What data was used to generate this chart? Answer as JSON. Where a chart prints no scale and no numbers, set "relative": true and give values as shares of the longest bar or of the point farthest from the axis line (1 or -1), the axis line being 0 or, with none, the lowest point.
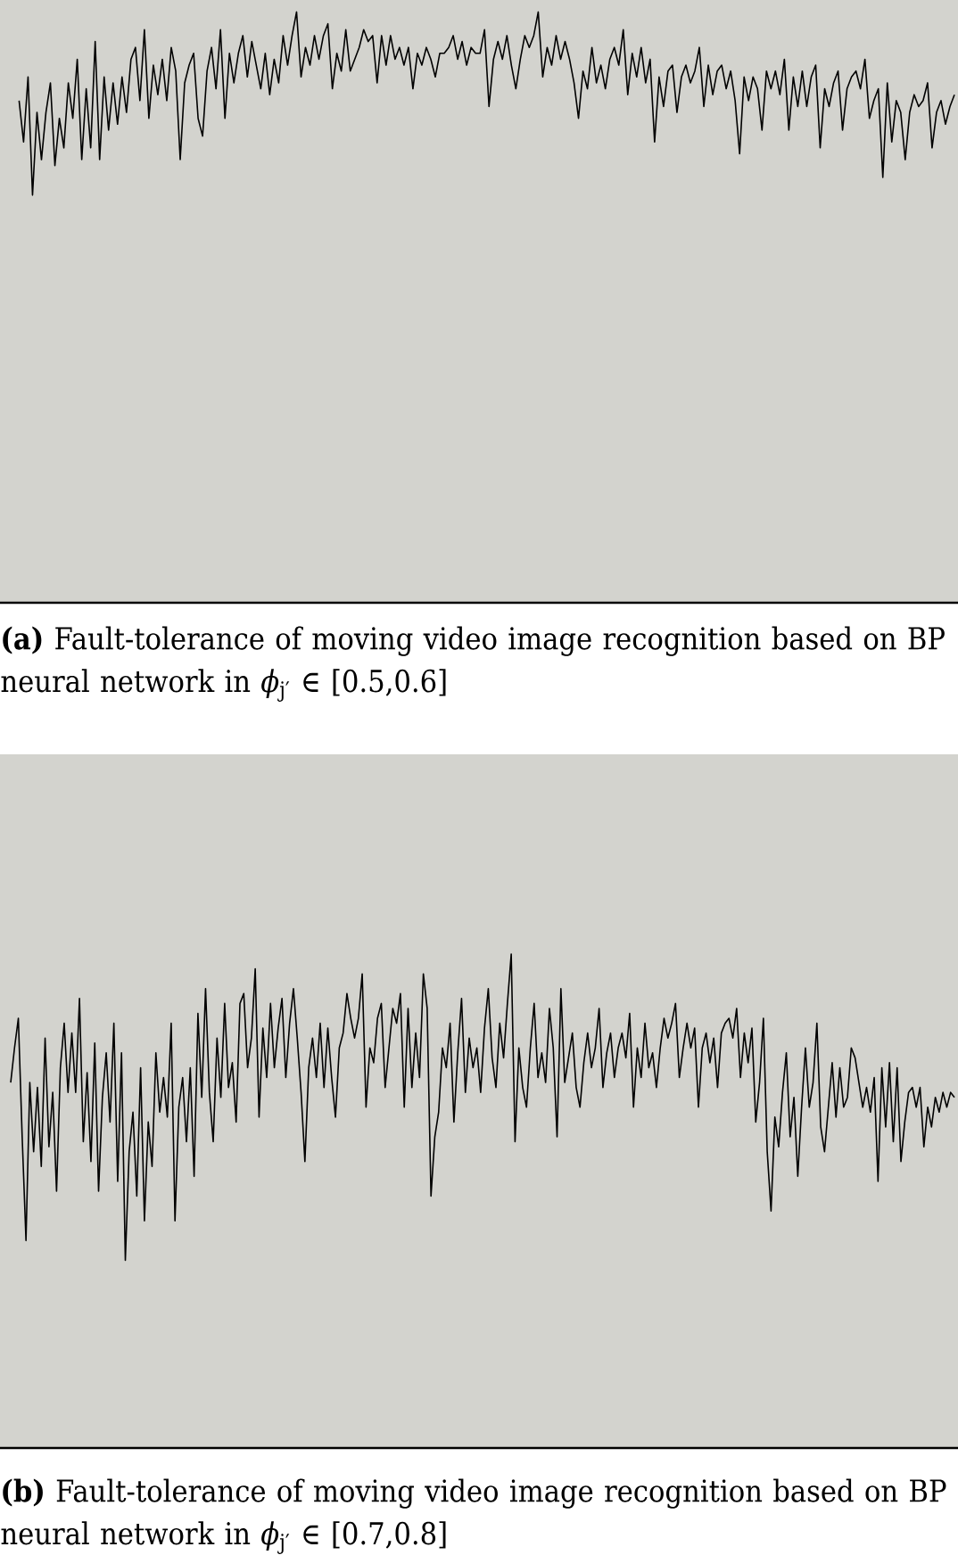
{
  "chart_data": [
    {
      "type": "line",
      "relative": true,
      "color": "#000000",
      "title": "**(a)** Fault-tolerance of moving video image recognition based on BP neural network in *ϕ*$_{j′}$ ∈ [0.5,0.6]",
      "categories": [
        null,
        null,
        null,
        null,
        null,
        null,
        null,
        null,
        null,
        null,
        null,
        null,
        null,
        null,
        null,
        null,
        null,
        null,
        null,
        null,
        null,
        null,
        null,
        null,
        null,
        null,
        null,
        null,
        null,
        null,
        null,
        null,
        null,
        null,
        null,
        null,
        null,
        null,
        null,
        null,
        null,
        null,
        null,
        null,
        null,
        null,
        null,
        null,
        null,
        null,
        null,
        null,
        null,
        null,
        null,
        null,
        null,
        null,
        null,
        null,
        null,
        null,
        null,
        null,
        null,
        null,
        null,
        null,
        null,
        null,
        null,
        null,
        null,
        null,
        null,
        null,
        null,
        null,
        null,
        null,
        null,
        null,
        null,
        null,
        null,
        null,
        null,
        null,
        null,
        null,
        null,
        null,
        null,
        null,
        null,
        null,
        null,
        null,
        null,
        null,
        null,
        null,
        null,
        null,
        null,
        null,
        null,
        null,
        null,
        null,
        null,
        null,
        null,
        null,
        null,
        null,
        null,
        null,
        null,
        null,
        null,
        null,
        null,
        null,
        null,
        null,
        null,
        null,
        null,
        null,
        null,
        null,
        null,
        null,
        null,
        null,
        null,
        null,
        null,
        null,
        null,
        null,
        null,
        null,
        null,
        null,
        null,
        null,
        null,
        null,
        null,
        null,
        null,
        null,
        null,
        null,
        null,
        null,
        null,
        null,
        null,
        null,
        null,
        null,
        null,
        null,
        null,
        null,
        null,
        null,
        null,
        null,
        null,
        null,
        null,
        null,
        null,
        null,
        null,
        null,
        null,
        null,
        null,
        null,
        null,
        null,
        null,
        null,
        null,
        null,
        null,
        null,
        null,
        null,
        null,
        null,
        null,
        null,
        null,
        null,
        null,
        null,
        null,
        null,
        null,
        null,
        null,
        null,
        null,
        null
      ],
      "values": [
        0.85,
        0.78,
        0.89,
        0.69,
        0.83,
        0.75,
        0.83,
        0.88,
        0.74,
        0.82,
        0.77,
        0.88,
        0.82,
        0.92,
        0.75,
        0.87,
        0.77,
        0.95,
        0.75,
        0.89,
        0.8,
        0.88,
        0.81,
        0.89,
        0.83,
        0.92,
        0.94,
        0.85,
        0.97,
        0.82,
        0.91,
        0.86,
        0.92,
        0.85,
        0.94,
        0.9,
        0.75,
        0.88,
        0.91,
        0.93,
        0.82,
        0.79,
        0.9,
        0.94,
        0.87,
        0.97,
        0.82,
        0.93,
        0.88,
        0.93,
        0.96,
        0.89,
        0.95,
        0.91,
        0.87,
        0.93,
        0.86,
        0.92,
        0.88,
        0.96,
        0.91,
        0.96,
        1.0,
        0.89,
        0.94,
        0.91,
        0.96,
        0.92,
        0.96,
        0.98,
        0.87,
        0.93,
        0.9,
        0.97,
        0.9,
        0.92,
        0.94,
        0.97,
        0.95,
        0.96,
        0.88,
        0.96,
        0.91,
        0.96,
        0.92,
        0.94,
        0.91,
        0.94,
        0.87,
        0.93,
        0.91,
        0.94,
        0.92,
        0.89,
        0.93,
        0.93,
        0.94,
        0.96,
        0.92,
        0.95,
        0.91,
        0.94,
        0.93,
        0.93,
        0.97,
        0.84,
        0.92,
        0.95,
        0.92,
        0.96,
        0.91,
        0.87,
        0.92,
        0.96,
        0.94,
        0.96,
        1.0,
        0.89,
        0.94,
        0.91,
        0.96,
        0.92,
        0.95,
        0.92,
        0.88,
        0.82,
        0.9,
        0.87,
        0.94,
        0.88,
        0.91,
        0.87,
        0.92,
        0.94,
        0.91,
        0.97,
        0.86,
        0.93,
        0.89,
        0.94,
        0.88,
        0.92,
        0.78,
        0.89,
        0.84,
        0.9,
        0.91,
        0.83,
        0.89,
        0.91,
        0.88,
        0.9,
        0.94,
        0.84,
        0.91,
        0.86,
        0.9,
        0.91,
        0.87,
        0.9,
        0.85,
        0.76,
        0.89,
        0.85,
        0.89,
        0.87,
        0.8,
        0.9,
        0.87,
        0.9,
        0.86,
        0.92,
        0.8,
        0.89,
        0.84,
        0.9,
        0.84,
        0.89,
        0.91,
        0.77,
        0.87,
        0.84,
        0.88,
        0.9,
        0.8,
        0.87,
        0.89,
        0.9,
        0.87,
        0.92,
        0.82,
        0.85,
        0.87,
        0.72,
        0.88,
        0.78,
        0.85,
        0.83,
        0.75,
        0.83,
        0.86,
        0.84,
        0.85,
        0.88,
        0.77,
        0.83,
        0.85,
        0.81,
        0.84,
        0.86
      ]
    },
    {
      "type": "line",
      "relative": true,
      "color": "#000000",
      "title": "**(b)** Fault-tolerance of moving video image recognition based on BP neural network in *ϕ*$_{j′}$ ∈ [0.7,0.8]",
      "categories": [
        null,
        null,
        null,
        null,
        null,
        null,
        null,
        null,
        null,
        null,
        null,
        null,
        null,
        null,
        null,
        null,
        null,
        null,
        null,
        null,
        null,
        null,
        null,
        null,
        null,
        null,
        null,
        null,
        null,
        null,
        null,
        null,
        null,
        null,
        null,
        null,
        null,
        null,
        null,
        null,
        null,
        null,
        null,
        null,
        null,
        null,
        null,
        null,
        null,
        null,
        null,
        null,
        null,
        null,
        null,
        null,
        null,
        null,
        null,
        null,
        null,
        null,
        null,
        null,
        null,
        null,
        null,
        null,
        null,
        null,
        null,
        null,
        null,
        null,
        null,
        null,
        null,
        null,
        null,
        null,
        null,
        null,
        null,
        null,
        null,
        null,
        null,
        null,
        null,
        null,
        null,
        null,
        null,
        null,
        null,
        null,
        null,
        null,
        null,
        null,
        null,
        null,
        null,
        null,
        null,
        null,
        null,
        null,
        null,
        null,
        null,
        null,
        null,
        null,
        null,
        null,
        null,
        null,
        null,
        null,
        null,
        null,
        null,
        null,
        null,
        null,
        null,
        null,
        null,
        null,
        null,
        null,
        null,
        null,
        null,
        null,
        null,
        null,
        null,
        null,
        null,
        null,
        null,
        null,
        null,
        null,
        null,
        null,
        null,
        null,
        null,
        null,
        null,
        null,
        null,
        null,
        null,
        null,
        null,
        null,
        null,
        null,
        null,
        null,
        null,
        null,
        null,
        null,
        null,
        null,
        null,
        null,
        null,
        null,
        null,
        null,
        null,
        null,
        null,
        null,
        null,
        null,
        null,
        null,
        null,
        null,
        null,
        null,
        null,
        null,
        null,
        null,
        null,
        null,
        null,
        null,
        null,
        null,
        null,
        null,
        null,
        null,
        null,
        null,
        null,
        null,
        null,
        null,
        null,
        null,
        null,
        null,
        null,
        null,
        null,
        null,
        null,
        null,
        null,
        null,
        null,
        null,
        null,
        null,
        null,
        null,
        null,
        null,
        null,
        null,
        null,
        null,
        null,
        null,
        null,
        null,
        null,
        null,
        null,
        null,
        null,
        null,
        null,
        null,
        null,
        null,
        null,
        null
      ],
      "values": [
        0.74,
        0.81,
        0.87,
        0.63,
        0.42,
        0.74,
        0.6,
        0.73,
        0.57,
        0.83,
        0.61,
        0.72,
        0.52,
        0.77,
        0.86,
        0.72,
        0.84,
        0.72,
        0.91,
        0.62,
        0.76,
        0.58,
        0.82,
        0.52,
        0.71,
        0.8,
        0.66,
        0.86,
        0.54,
        0.8,
        0.38,
        0.6,
        0.68,
        0.51,
        0.77,
        0.46,
        0.66,
        0.57,
        0.8,
        0.68,
        0.75,
        0.67,
        0.86,
        0.46,
        0.69,
        0.75,
        0.62,
        0.77,
        0.55,
        0.88,
        0.71,
        0.93,
        0.72,
        0.62,
        0.83,
        0.71,
        0.9,
        0.73,
        0.78,
        0.66,
        0.9,
        0.92,
        0.77,
        0.83,
        0.97,
        0.67,
        0.85,
        0.75,
        0.9,
        0.77,
        0.85,
        0.91,
        0.75,
        0.86,
        0.93,
        0.83,
        0.72,
        0.58,
        0.77,
        0.83,
        0.75,
        0.86,
        0.73,
        0.85,
        0.75,
        0.67,
        0.81,
        0.84,
        0.92,
        0.87,
        0.83,
        0.87,
        0.96,
        0.69,
        0.81,
        0.78,
        0.87,
        0.9,
        0.73,
        0.81,
        0.89,
        0.86,
        0.92,
        0.69,
        0.89,
        0.73,
        0.84,
        0.75,
        0.96,
        0.89,
        0.51,
        0.63,
        0.68,
        0.81,
        0.77,
        0.86,
        0.66,
        0.8,
        0.91,
        0.72,
        0.83,
        0.77,
        0.81,
        0.72,
        0.85,
        0.93,
        0.79,
        0.73,
        0.86,
        0.79,
        0.9,
        1.0,
        0.62,
        0.81,
        0.73,
        0.69,
        0.81,
        0.9,
        0.75,
        0.8,
        0.74,
        0.89,
        0.81,
        0.63,
        0.93,
        0.74,
        0.79,
        0.84,
        0.73,
        0.69,
        0.78,
        0.84,
        0.77,
        0.81,
        0.89,
        0.73,
        0.8,
        0.84,
        0.75,
        0.81,
        0.84,
        0.79,
        0.88,
        0.69,
        0.81,
        0.75,
        0.86,
        0.77,
        0.8,
        0.73,
        0.81,
        0.87,
        0.83,
        0.86,
        0.9,
        0.75,
        0.81,
        0.86,
        0.81,
        0.85,
        0.69,
        0.81,
        0.84,
        0.78,
        0.83,
        0.73,
        0.84,
        0.86,
        0.87,
        0.83,
        0.89,
        0.75,
        0.84,
        0.78,
        0.85,
        0.66,
        0.74,
        0.87,
        0.6,
        0.48,
        0.67,
        0.61,
        0.72,
        0.8,
        0.63,
        0.71,
        0.55,
        0.69,
        0.81,
        0.69,
        0.74,
        0.86,
        0.65,
        0.6,
        0.69,
        0.78,
        0.67,
        0.77,
        0.69,
        0.71,
        0.81,
        0.79,
        0.74,
        0.69,
        0.73,
        0.68,
        0.75,
        0.54,
        0.77,
        0.65,
        0.78,
        0.62,
        0.77,
        0.58,
        0.66,
        0.72,
        0.73,
        0.69,
        0.73,
        0.61,
        0.69,
        0.65,
        0.71,
        0.68,
        0.72,
        0.69,
        0.72,
        0.71
      ]
    }
  ]
}
